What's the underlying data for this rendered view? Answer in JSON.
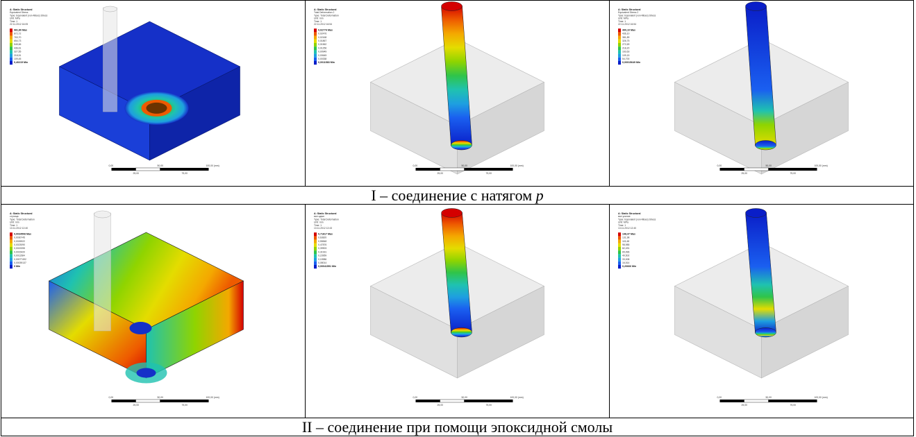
{
  "figure": {
    "panels_row1": [
      {
        "name": "hub-equivalent-stress",
        "legend_header": [
          "A: Static Structural",
          "Equivalent Stress",
          "Type: Equivalent (von-Mises) Stress",
          "Unit: MPa",
          "Time: 1",
          "22.11.2012 16:05"
        ],
        "legend_values": [
          "981,80 Max",
          "872,72",
          "763,70",
          "654,73",
          "545,66",
          "436,61",
          "327,55",
          "218,51",
          "109,45",
          "0,40215 Min"
        ],
        "scale": {
          "ticks_top": [
            "0,00",
            "50,00",
            "100,00 (mm)"
          ],
          "ticks_bottom": [
            "25,00",
            "75,00"
          ]
        }
      },
      {
        "name": "shaft-total-deformation",
        "legend_header": [
          "A: Static Structural",
          "Total Deformation 2",
          "Type: Total Deformation",
          "Unit: mm",
          "Time: 1",
          "22.11.2012 16:54"
        ],
        "legend_values": [
          "0,02774 Max",
          "0,02476",
          "0,02168",
          "0,01867",
          "0,01562",
          "0,01256",
          "0,00949",
          "0,00645",
          "0,00338",
          "0,0011583 Min"
        ],
        "scale": {
          "ticks_top": [
            "0,00",
            "50,00",
            "100,00 (mm)"
          ],
          "ticks_bottom": [
            "25,00",
            "75,00"
          ]
        }
      },
      {
        "name": "shaft-equivalent-stress",
        "legend_header": [
          "A: Static Structural",
          "Equivalent Stress 2",
          "Type: Equivalent (von-Mises) Stress",
          "Unit: MPa",
          "Time: 1",
          "22.11.2012 16:54"
        ],
        "legend_values": [
          "490,10 Max",
          "436,10",
          "381,89",
          "326,75",
          "272,69",
          "218,20",
          "163,63",
          "109,15",
          "54,700",
          "0,00015649 Min"
        ],
        "scale": {
          "ticks_top": [
            "0,00",
            "50,00",
            "100,00 (mm)"
          ],
          "ticks_bottom": [
            "25,00",
            "75,00"
          ]
        }
      }
    ],
    "caption_row1": {
      "text": "I – соединение с натягом ",
      "symbol": "p"
    },
    "panels_row2": [
      {
        "name": "hub-total-deformation",
        "legend_header": [
          "A: Static Structural",
          "ступица",
          "Type: Total Deformation",
          "Unit: mm",
          "Time: 1",
          "13.11.2012 12:40"
        ],
        "legend_values": [
          "0,0034508 Max",
          "0,0030745",
          "0,0026922",
          "0,0023090",
          "0,0019255",
          "0,0015420",
          "0,0011584",
          "0,00077492",
          "0,00039137",
          "0 Min"
        ],
        "scale": {
          "ticks_top": [
            "0,00",
            "50,00",
            "100,00 (mm)"
          ],
          "ticks_bottom": [
            "25,00",
            "75,00"
          ]
        }
      },
      {
        "name": "shaft-total-deformation-epoxy",
        "legend_header": [
          "A: Static Structural",
          "вал сдвиг",
          "Type: Total Deformation",
          "Unit: mm",
          "Time: 1",
          "13.11.2012 12:43"
        ],
        "legend_values": [
          "0,71817 Max",
          "0,63820",
          "0,55848",
          "0,47876",
          "0,39903",
          "0,31931",
          "0,23959",
          "0,15986",
          "0,08014",
          "0,00041591 Min"
        ],
        "scale": {
          "ticks_top": [
            "0,00",
            "50,00",
            "100,00 (mm)"
          ],
          "ticks_bottom": [
            "25,00",
            "75,00"
          ]
        }
      },
      {
        "name": "shaft-equivalent-stress-epoxy",
        "legend_header": [
          "A: Static Structural",
          "вал усилие",
          "Type: Equivalent (von-Mises) Stress",
          "Unit: MPa",
          "Time: 1",
          "13.11.2012 12:40"
        ],
        "legend_values": [
          "148,47 Max",
          "131,98",
          "115,48",
          "98,985",
          "82,491",
          "65,996",
          "49,502",
          "33,008",
          "16,514",
          "0,20666 Min"
        ],
        "scale": {
          "ticks_top": [
            "0,00",
            "50,00",
            "100,00 (mm)"
          ],
          "ticks_bottom": [
            "25,00",
            "75,00"
          ]
        }
      }
    ],
    "caption_row2": {
      "text": "II – соединение при помощи эпоксидной смолы"
    },
    "colormap": [
      "#d40000",
      "#ee5a00",
      "#f4a800",
      "#e4dc00",
      "#8fd400",
      "#2fc44a",
      "#1fc2b0",
      "#1e9fe0",
      "#1a5ff0",
      "#0a1ec8"
    ]
  }
}
